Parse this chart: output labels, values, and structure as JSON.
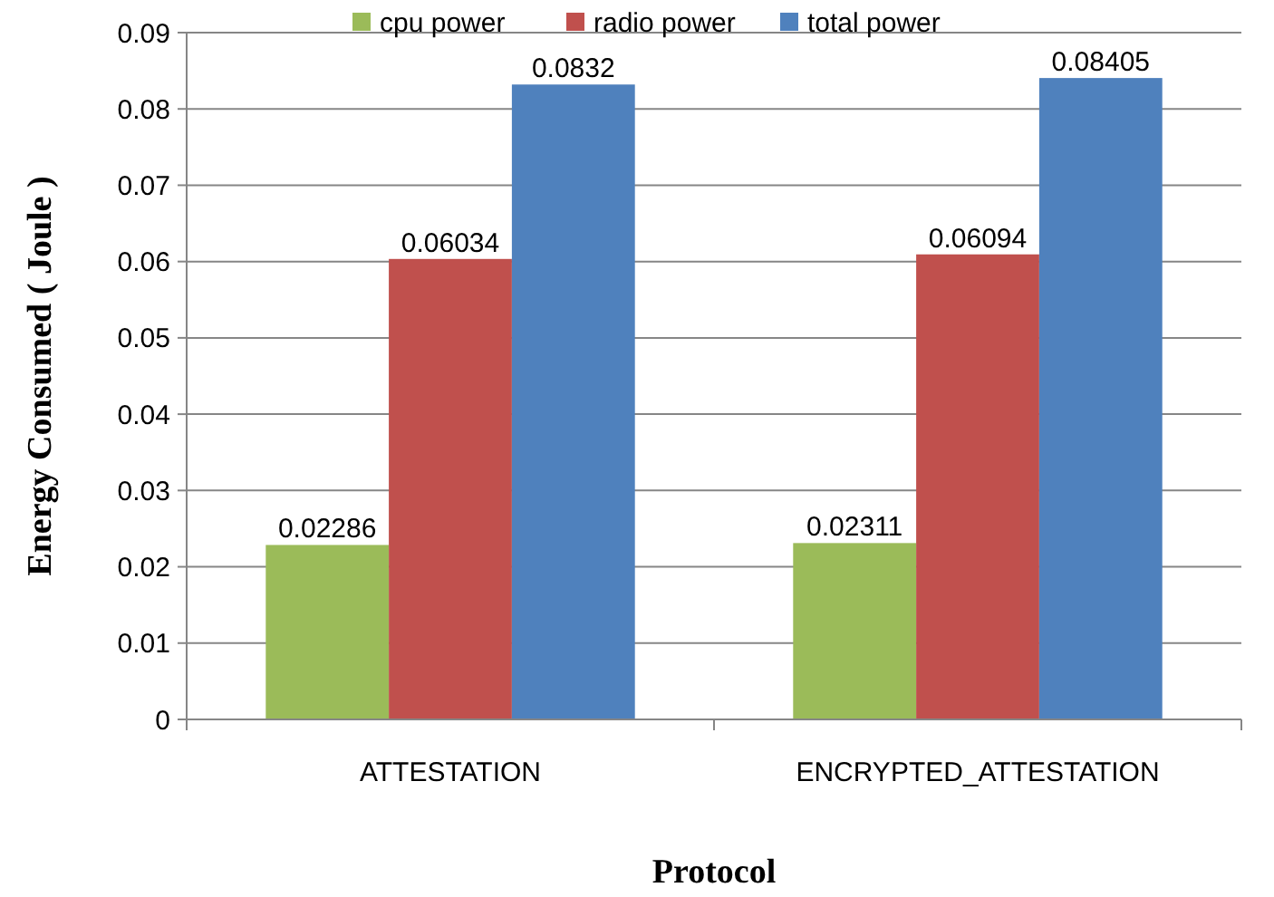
{
  "chart_data": {
    "type": "bar",
    "xlabel": "Protocol",
    "ylabel": "Energy Consumed ( Joule )",
    "categories": [
      "ATTESTATION",
      "ENCRYPTED_ATTESTATION"
    ],
    "series": [
      {
        "name": "cpu power",
        "color": "#9bbb59",
        "values": [
          0.02286,
          0.02311
        ]
      },
      {
        "name": "radio power",
        "color": "#c0504d",
        "values": [
          0.06034,
          0.06094
        ]
      },
      {
        "name": "total power",
        "color": "#4f81bd",
        "values": [
          0.0832,
          0.08405
        ]
      }
    ],
    "ylim": [
      0,
      0.09
    ],
    "yticks": [
      0,
      0.01,
      0.02,
      0.03,
      0.04,
      0.05,
      0.06,
      0.07,
      0.08,
      0.09
    ],
    "grid": "y",
    "legend": "top",
    "data_labels": true
  }
}
